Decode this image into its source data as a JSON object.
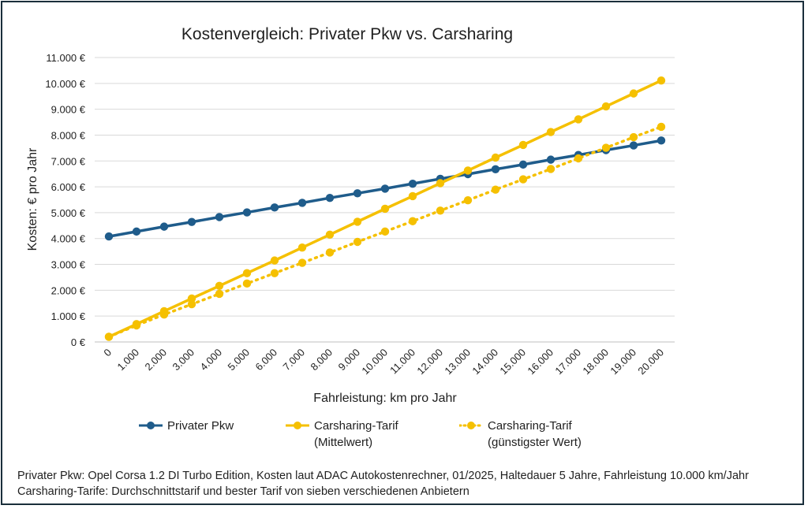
{
  "chart_data": {
    "type": "line",
    "title": "Kostenvergleich: Privater Pkw vs. Carsharing",
    "xlabel": "Fahrleistung: km pro Jahr",
    "ylabel": "Kosten: € pro Jahr",
    "ylim": [
      0,
      11000
    ],
    "yticks": [
      "0 €",
      "1.000 €",
      "2.000 €",
      "3.000 €",
      "4.000 €",
      "5.000 €",
      "6.000 €",
      "7.000 €",
      "8.000 €",
      "9.000 €",
      "10.000 €",
      "11.000 €"
    ],
    "categories": [
      "0",
      "1.000",
      "2.000",
      "3.000",
      "4.000",
      "5.000",
      "6.000",
      "7.000",
      "8.000",
      "9.000",
      "10.000",
      "11.000",
      "12.000",
      "13.000",
      "14.000",
      "15.000",
      "16.000",
      "17.000",
      "18.000",
      "19.000",
      "20.000"
    ],
    "series": [
      {
        "name": "Privater Pkw",
        "color": "#1f5c8b",
        "style": "solid",
        "values": [
          4080,
          4270,
          4460,
          4640,
          4830,
          5010,
          5200,
          5380,
          5570,
          5750,
          5930,
          6120,
          6310,
          6490,
          6680,
          6860,
          7050,
          7230,
          7420,
          7600,
          7790
        ]
      },
      {
        "name": "Carsharing-Tarif (Mittelwert)",
        "color": "#f5c000",
        "style": "solid",
        "values": [
          200,
          690,
          1190,
          1680,
          2170,
          2660,
          3150,
          3650,
          4150,
          4650,
          5150,
          5640,
          6140,
          6630,
          7130,
          7620,
          8120,
          8610,
          9110,
          9610,
          10110
        ]
      },
      {
        "name": "Carsharing-Tarif (günstigster Wert)",
        "color": "#f5c000",
        "style": "dotted",
        "values": [
          200,
          640,
          1060,
          1460,
          1860,
          2260,
          2660,
          3060,
          3460,
          3870,
          4270,
          4670,
          5080,
          5480,
          5890,
          6290,
          6690,
          7100,
          7510,
          7920,
          8320
        ]
      }
    ]
  },
  "legend": {
    "items": [
      {
        "line1": "Privater Pkw",
        "line2": ""
      },
      {
        "line1": "Carsharing-Tarif",
        "line2": "(Mittelwert)"
      },
      {
        "line1": "Carsharing-Tarif",
        "line2": "(günstigster Wert)"
      }
    ]
  },
  "footnote": {
    "line1": "Privater Pkw: Opel Corsa 1.2 DI Turbo Edition, Kosten laut ADAC Autokostenrechner, 01/2025, Haltedauer 5 Jahre, Fahrleistung 10.000 km/Jahr",
    "line2": "Carsharing-Tarife: Durchschnittstarif und bester Tarif von sieben verschiedenen Anbietern"
  }
}
